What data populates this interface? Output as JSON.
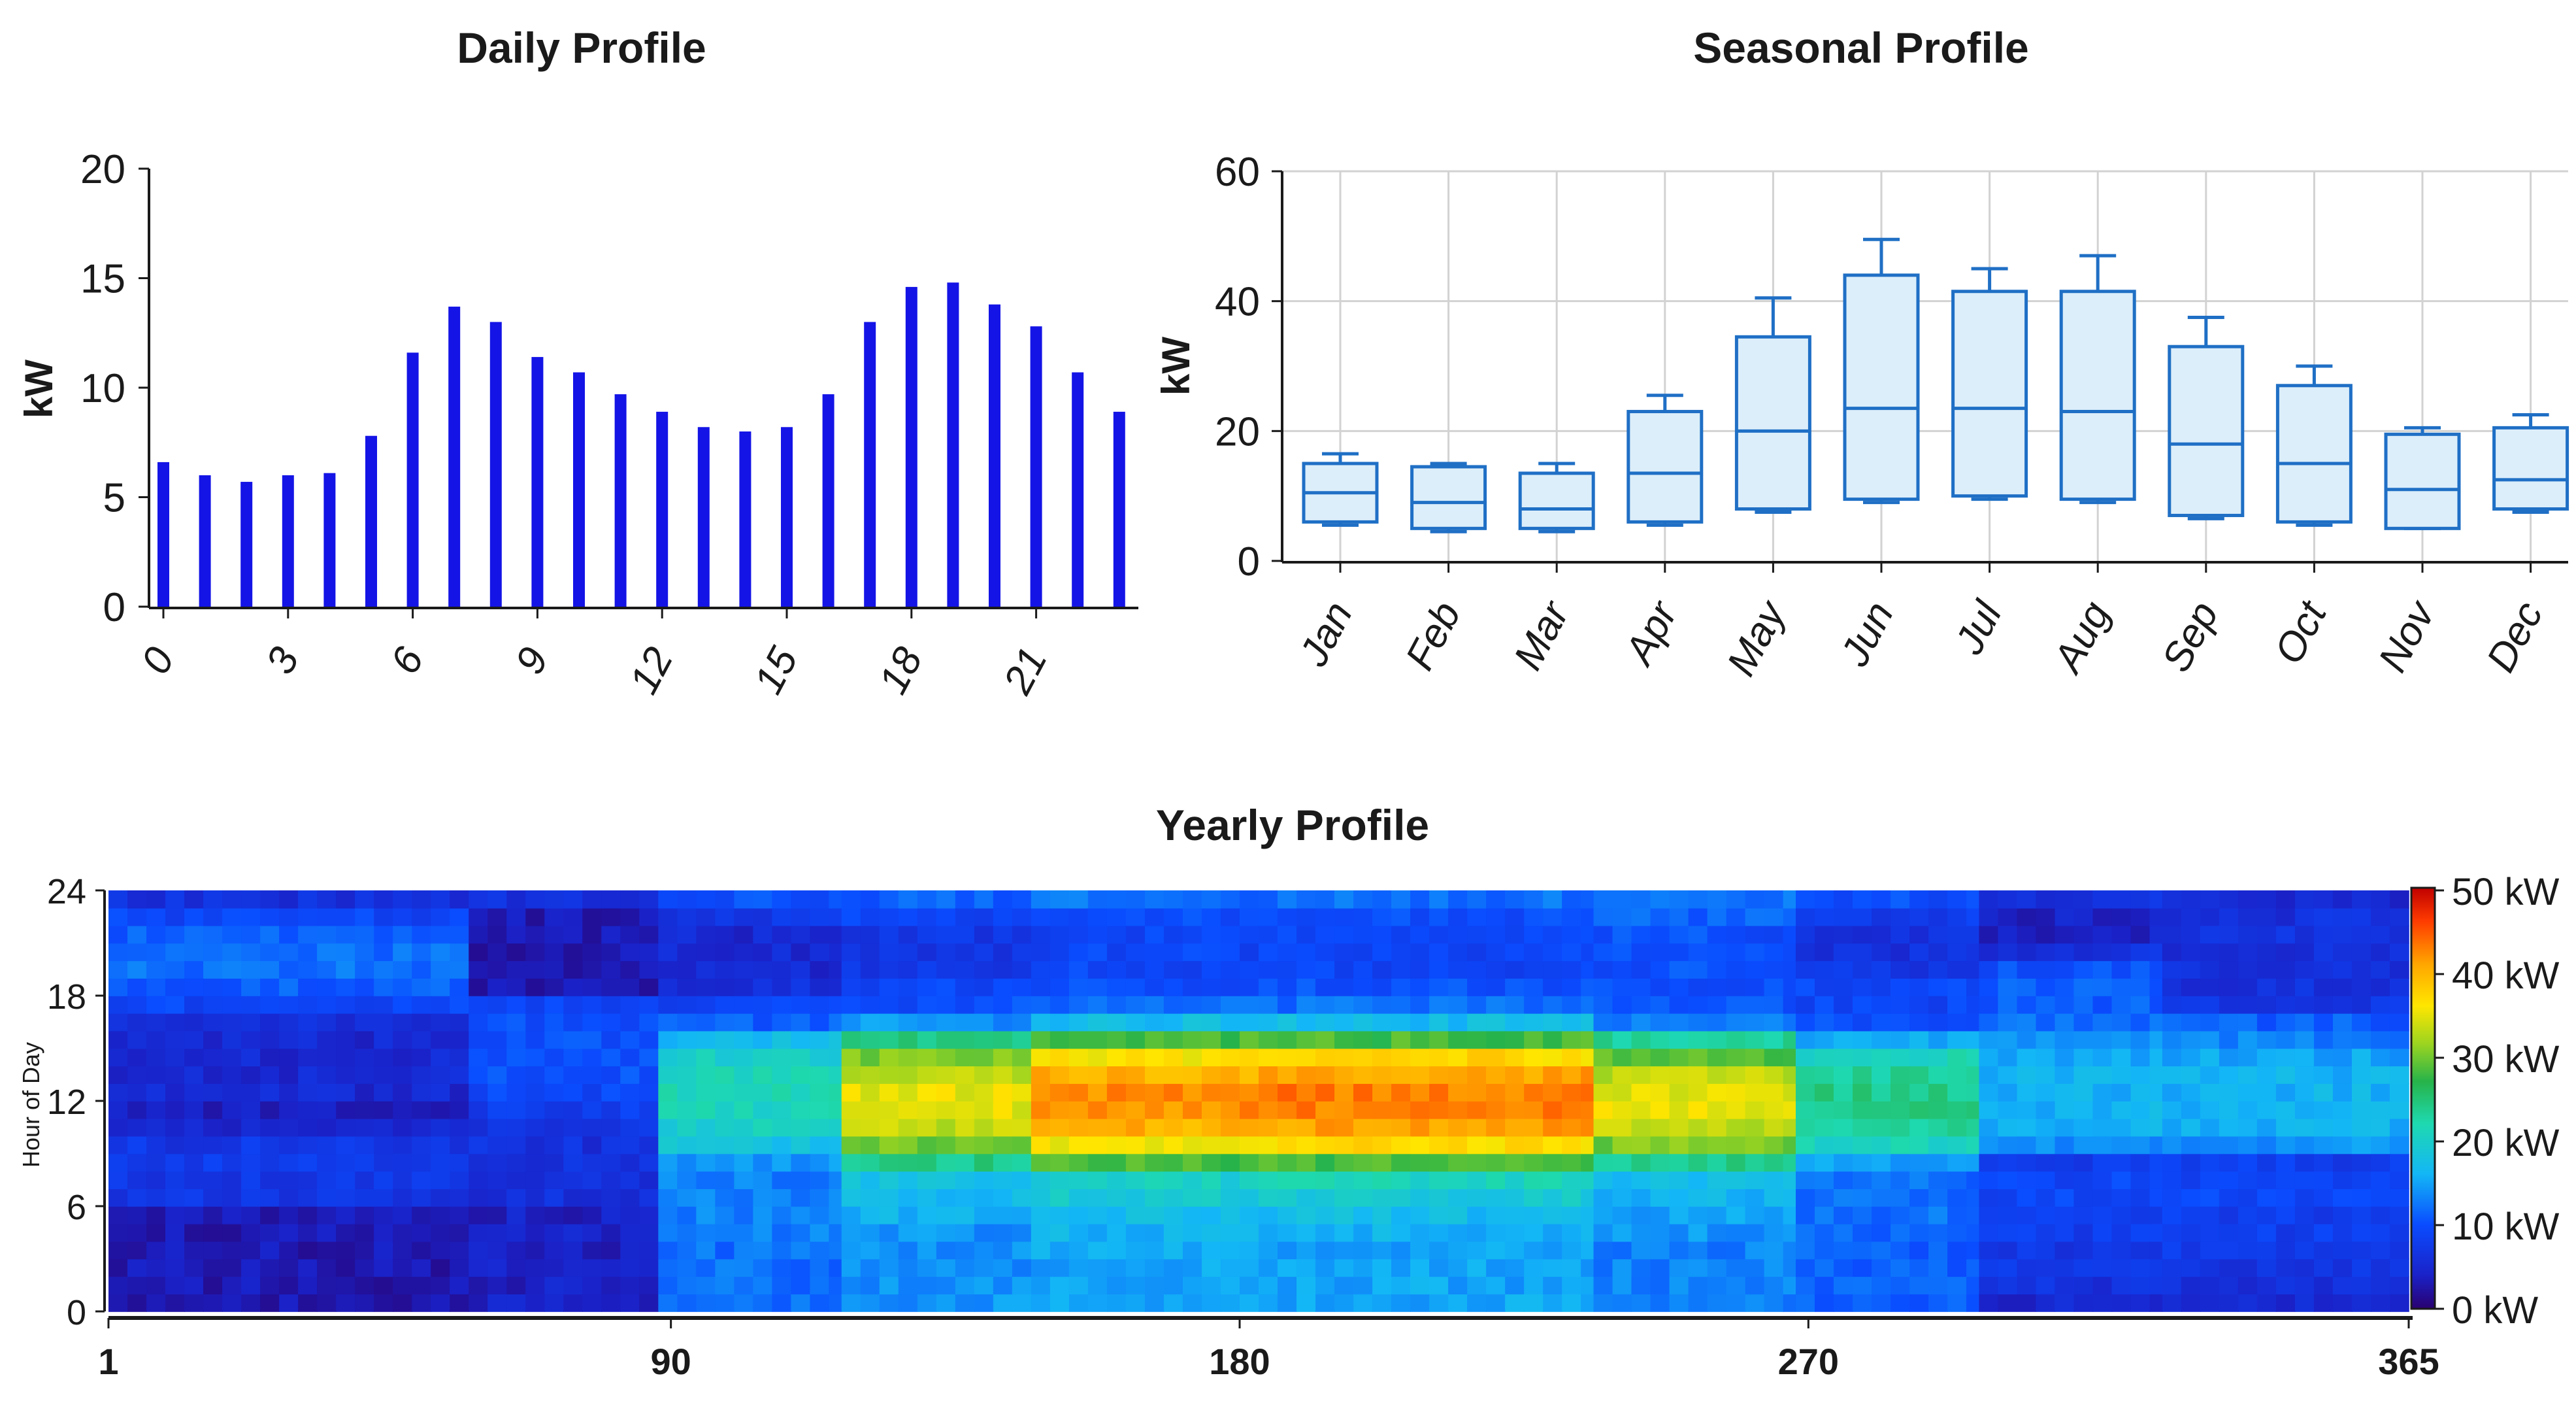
{
  "colors": {
    "bar": "#1414e6",
    "box_stroke": "#1f6fc5",
    "box_fill": "#dceefa",
    "axis": "#1a1a1a",
    "grid": "#d2d2d2"
  },
  "chart_data": [
    {
      "type": "bar",
      "title": "Daily Profile",
      "xlabel": "",
      "ylabel": "kW",
      "ylim": [
        0,
        20
      ],
      "yticks": [
        "0",
        "5",
        "10",
        "15",
        "20"
      ],
      "xticks": [
        "0",
        "3",
        "6",
        "9",
        "12",
        "15",
        "18",
        "21"
      ],
      "categories": [
        "0",
        "1",
        "2",
        "3",
        "4",
        "5",
        "6",
        "7",
        "8",
        "9",
        "10",
        "11",
        "12",
        "13",
        "14",
        "15",
        "16",
        "17",
        "18",
        "19",
        "20",
        "21",
        "22",
        "23"
      ],
      "values": [
        6.6,
        6.0,
        5.7,
        6.0,
        6.1,
        7.8,
        11.6,
        13.7,
        13.0,
        11.4,
        10.7,
        9.7,
        8.9,
        8.2,
        8.0,
        8.2,
        9.7,
        13.0,
        14.6,
        14.8,
        13.8,
        12.8,
        10.7,
        8.9
      ],
      "grid": false
    },
    {
      "type": "box",
      "title": "Seasonal Profile",
      "xlabel": "",
      "ylabel": "kW",
      "ylim": [
        0,
        60
      ],
      "yticks": [
        "0",
        "20",
        "40",
        "60"
      ],
      "categories": [
        "Jan",
        "Feb",
        "Mar",
        "Apr",
        "May",
        "Jun",
        "Jul",
        "Aug",
        "Sep",
        "Oct",
        "Nov",
        "Dec"
      ],
      "boxes": [
        {
          "min": 5.5,
          "q1": 6.0,
          "median": 10.5,
          "q3": 15.0,
          "max": 16.5
        },
        {
          "min": 4.5,
          "q1": 5.0,
          "median": 9.0,
          "q3": 14.5,
          "max": 15.0
        },
        {
          "min": 4.5,
          "q1": 5.0,
          "median": 8.0,
          "q3": 13.5,
          "max": 15.0
        },
        {
          "min": 5.5,
          "q1": 6.0,
          "median": 13.5,
          "q3": 23.0,
          "max": 25.5
        },
        {
          "min": 7.5,
          "q1": 8.0,
          "median": 20.0,
          "q3": 34.5,
          "max": 40.5
        },
        {
          "min": 9.0,
          "q1": 9.5,
          "median": 23.5,
          "q3": 44.0,
          "max": 49.5
        },
        {
          "min": 9.5,
          "q1": 10.0,
          "median": 23.5,
          "q3": 41.5,
          "max": 45.0
        },
        {
          "min": 9.0,
          "q1": 9.5,
          "median": 23.0,
          "q3": 41.5,
          "max": 47.0
        },
        {
          "min": 6.5,
          "q1": 7.0,
          "median": 18.0,
          "q3": 33.0,
          "max": 37.5
        },
        {
          "min": 5.5,
          "q1": 6.0,
          "median": 15.0,
          "q3": 27.0,
          "max": 30.0
        },
        {
          "min": 5.0,
          "q1": 5.0,
          "median": 11.0,
          "q3": 19.5,
          "max": 20.5
        },
        {
          "min": 7.5,
          "q1": 8.0,
          "median": 12.5,
          "q3": 20.5,
          "max": 22.5
        }
      ],
      "grid": true
    },
    {
      "type": "heatmap",
      "title": "Yearly Profile",
      "xlabel": "",
      "ylabel": "Hour of Day",
      "xlim": [
        1,
        365
      ],
      "ylim": [
        0,
        24
      ],
      "xticks": [
        "1",
        "90",
        "180",
        "270",
        "365"
      ],
      "yticks": [
        "0",
        "6",
        "12",
        "18",
        "24"
      ],
      "colorbar": {
        "min": 0,
        "max": 50,
        "unit": "kW",
        "labels": [
          "50 kW",
          "40 kW",
          "30 kW",
          "20 kW",
          "10 kW",
          "0 kW"
        ]
      },
      "segments": [
        {
          "day_start": 1,
          "day_end": 58,
          "profile": [
            3,
            3,
            3,
            3,
            3,
            3,
            7,
            7,
            8,
            7,
            5,
            4,
            5,
            5,
            5,
            5,
            6,
            9,
            11,
            12,
            12,
            11,
            9,
            6
          ]
        },
        {
          "day_start": 58,
          "day_end": 88,
          "profile": [
            4,
            4,
            4,
            4,
            4,
            4,
            6,
            6,
            6,
            6,
            7,
            8,
            9,
            10,
            10,
            10,
            10,
            9,
            3,
            3,
            3,
            3,
            3,
            6
          ]
        },
        {
          "day_start": 88,
          "day_end": 117,
          "profile": [
            12,
            12,
            12,
            12,
            13,
            13,
            13,
            13,
            14,
            18,
            20,
            21,
            21,
            21,
            20,
            17,
            11,
            9,
            6,
            5,
            5,
            5,
            7,
            10
          ]
        },
        {
          "day_start": 117,
          "day_end": 147,
          "profile": [
            14,
            14,
            14,
            14,
            14,
            16,
            17,
            18,
            24,
            30,
            33,
            35,
            35,
            33,
            30,
            24,
            14,
            10,
            9,
            7,
            7,
            7,
            9,
            11
          ]
        },
        {
          "day_start": 147,
          "day_end": 183,
          "profile": [
            15,
            15,
            15,
            16,
            16,
            17,
            19,
            20,
            28,
            36,
            40,
            42,
            42,
            40,
            36,
            28,
            17,
            12,
            10,
            9,
            9,
            9,
            10,
            12
          ]
        },
        {
          "day_start": 183,
          "day_end": 236,
          "profile": [
            15,
            15,
            15,
            15,
            16,
            17,
            19,
            21,
            28,
            37,
            41,
            43,
            43,
            41,
            37,
            28,
            17,
            12,
            10,
            9,
            9,
            9,
            10,
            12
          ]
        },
        {
          "day_start": 236,
          "day_end": 268,
          "profile": [
            13,
            13,
            13,
            13,
            14,
            15,
            16,
            17,
            24,
            30,
            33,
            35,
            35,
            33,
            29,
            23,
            13,
            10,
            10,
            10,
            10,
            10,
            11,
            12
          ]
        },
        {
          "day_start": 268,
          "day_end": 297,
          "profile": [
            11,
            11,
            11,
            11,
            11,
            12,
            12,
            12,
            15,
            21,
            23,
            24,
            24,
            23,
            21,
            15,
            10,
            9,
            9,
            7,
            6,
            6,
            8,
            10
          ]
        },
        {
          "day_start": 297,
          "day_end": 326,
          "profile": [
            5,
            6,
            7,
            7,
            8,
            8,
            9,
            9,
            8,
            14,
            16,
            16,
            16,
            16,
            15,
            14,
            12,
            11,
            11,
            10,
            6,
            4,
            4,
            6
          ]
        },
        {
          "day_start": 326,
          "day_end": 365,
          "profile": [
            5,
            6,
            7,
            8,
            8,
            8,
            9,
            9,
            8,
            14,
            16,
            16,
            16,
            16,
            15,
            13,
            11,
            7,
            6,
            6,
            6,
            6,
            6,
            5
          ]
        }
      ]
    }
  ]
}
